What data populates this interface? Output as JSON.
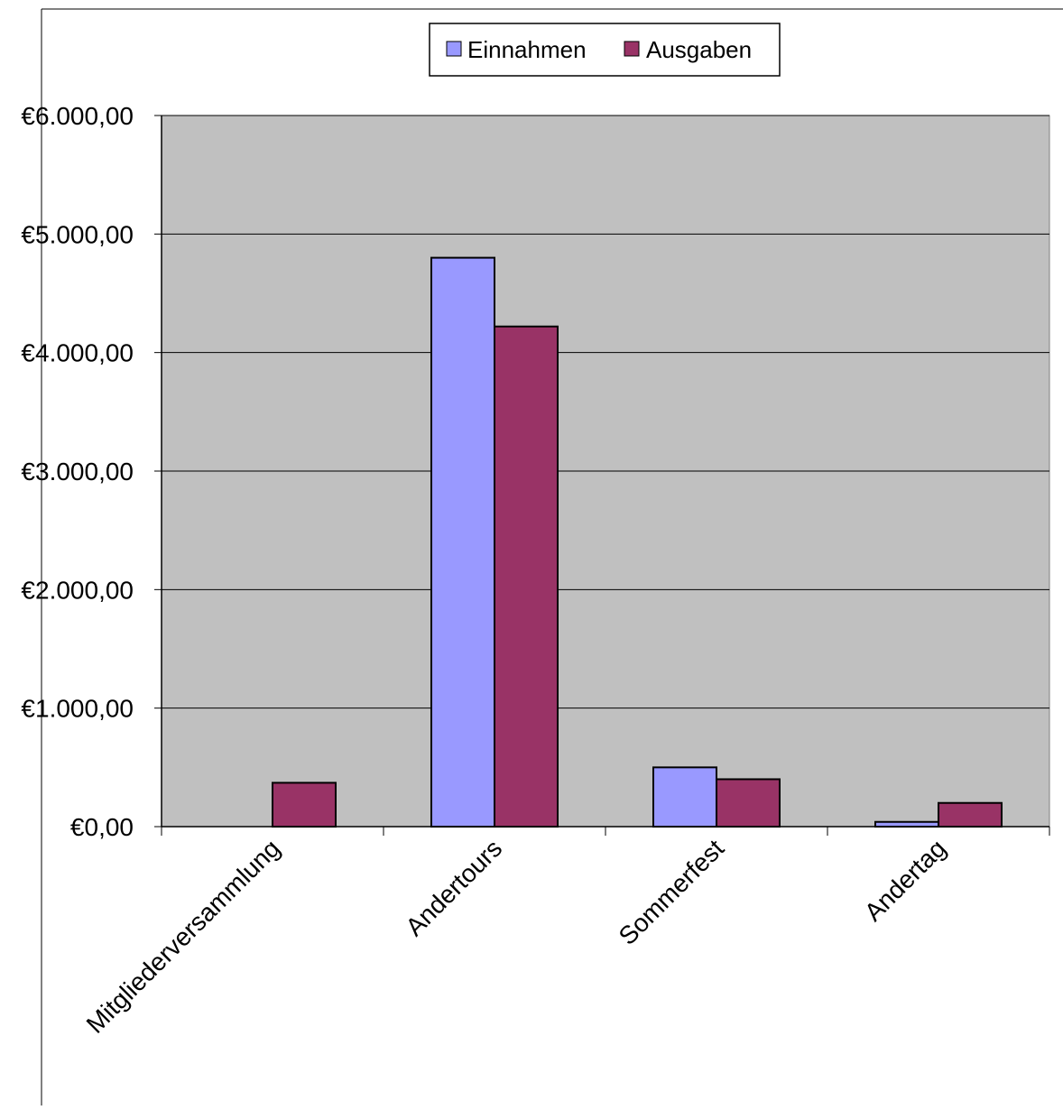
{
  "colors": {
    "page_background": "#ffffff",
    "plot_background": "#c0c0c0",
    "einnahmen": "#9999ff",
    "ausgaben": "#993366",
    "gridline": "#000000",
    "bar_stroke": "#000000"
  },
  "chart_data": {
    "type": "bar",
    "title": "",
    "xlabel": "",
    "ylabel": "",
    "categories": [
      "Mitgliederversammlung",
      "Andertours",
      "Sommerfest",
      "Andertag"
    ],
    "series": [
      {
        "name": "Einnahmen",
        "color": "#9999ff",
        "values": [
          0,
          4800,
          500,
          40
        ]
      },
      {
        "name": "Ausgaben",
        "color": "#993366",
        "values": [
          370,
          4220,
          400,
          200
        ]
      }
    ],
    "ylim": [
      0,
      6000
    ],
    "yticks": [
      0,
      1000,
      2000,
      3000,
      4000,
      5000,
      6000
    ],
    "ytick_labels": [
      "€0,00",
      "€1.000,00",
      "€2.000,00",
      "€3.000,00",
      "€4.000,00",
      "€5.000,00",
      "€6.000,00"
    ],
    "grid": true,
    "legend": {
      "placement": "top-center",
      "entries": [
        "Einnahmen",
        "Ausgaben"
      ]
    }
  }
}
